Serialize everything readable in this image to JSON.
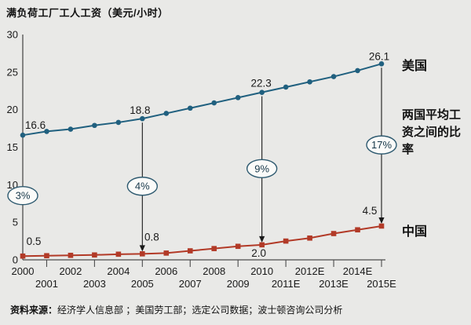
{
  "title": "满负荷工厂工人工资（美元/小时）",
  "right_labels": {
    "us": "美国",
    "ratio": "两国平均工资之间的比率",
    "china": "中国"
  },
  "source": {
    "prefix": "资料来源：",
    "text": "经济学人信息部 ；美国劳工部；选定公司数据；波士顿咨询公司分析"
  },
  "colors": {
    "us_line": "#20607f",
    "china_line": "#b23a27",
    "axis": "#4d4d4d",
    "text": "#1a1a1a",
    "arrow": "#1a1a1a",
    "oval_border": "#2e5a70",
    "oval_fill": "#fbfbf9",
    "oval_text": "#17384a",
    "background": "#e9e9e7"
  },
  "chart_data": {
    "type": "line",
    "x": [
      "2000",
      "2001",
      "2002",
      "2003",
      "2004",
      "2005",
      "2006",
      "2007",
      "2008",
      "2009",
      "2010",
      "2011E",
      "2012E",
      "2013E",
      "2014E",
      "2015E"
    ],
    "ylim": [
      0,
      30
    ],
    "ytick_step": 5,
    "grid": false,
    "legend_position": "right",
    "series": [
      {
        "name": "美国",
        "marker": "circle",
        "values": [
          16.6,
          17.1,
          17.4,
          17.9,
          18.3,
          18.8,
          19.5,
          20.2,
          20.9,
          21.6,
          22.3,
          23.0,
          23.7,
          24.4,
          25.2,
          26.1
        ],
        "label_points": [
          "2000",
          "2005",
          "2010",
          "2015E"
        ]
      },
      {
        "name": "中国",
        "marker": "square",
        "values": [
          0.5,
          0.55,
          0.6,
          0.65,
          0.75,
          0.8,
          0.9,
          1.2,
          1.5,
          1.8,
          2.0,
          2.5,
          2.9,
          3.5,
          4.0,
          4.5
        ],
        "label_points": [
          "2000",
          "2005",
          "2010",
          "2015E"
        ]
      }
    ],
    "ratio_annotations": [
      {
        "x": "2000",
        "label": "3%",
        "arrow": false
      },
      {
        "x": "2005",
        "label": "4%",
        "arrow": true
      },
      {
        "x": "2010",
        "label": "9%",
        "arrow": true
      },
      {
        "x": "2015E",
        "label": "17%",
        "arrow": true
      }
    ]
  }
}
